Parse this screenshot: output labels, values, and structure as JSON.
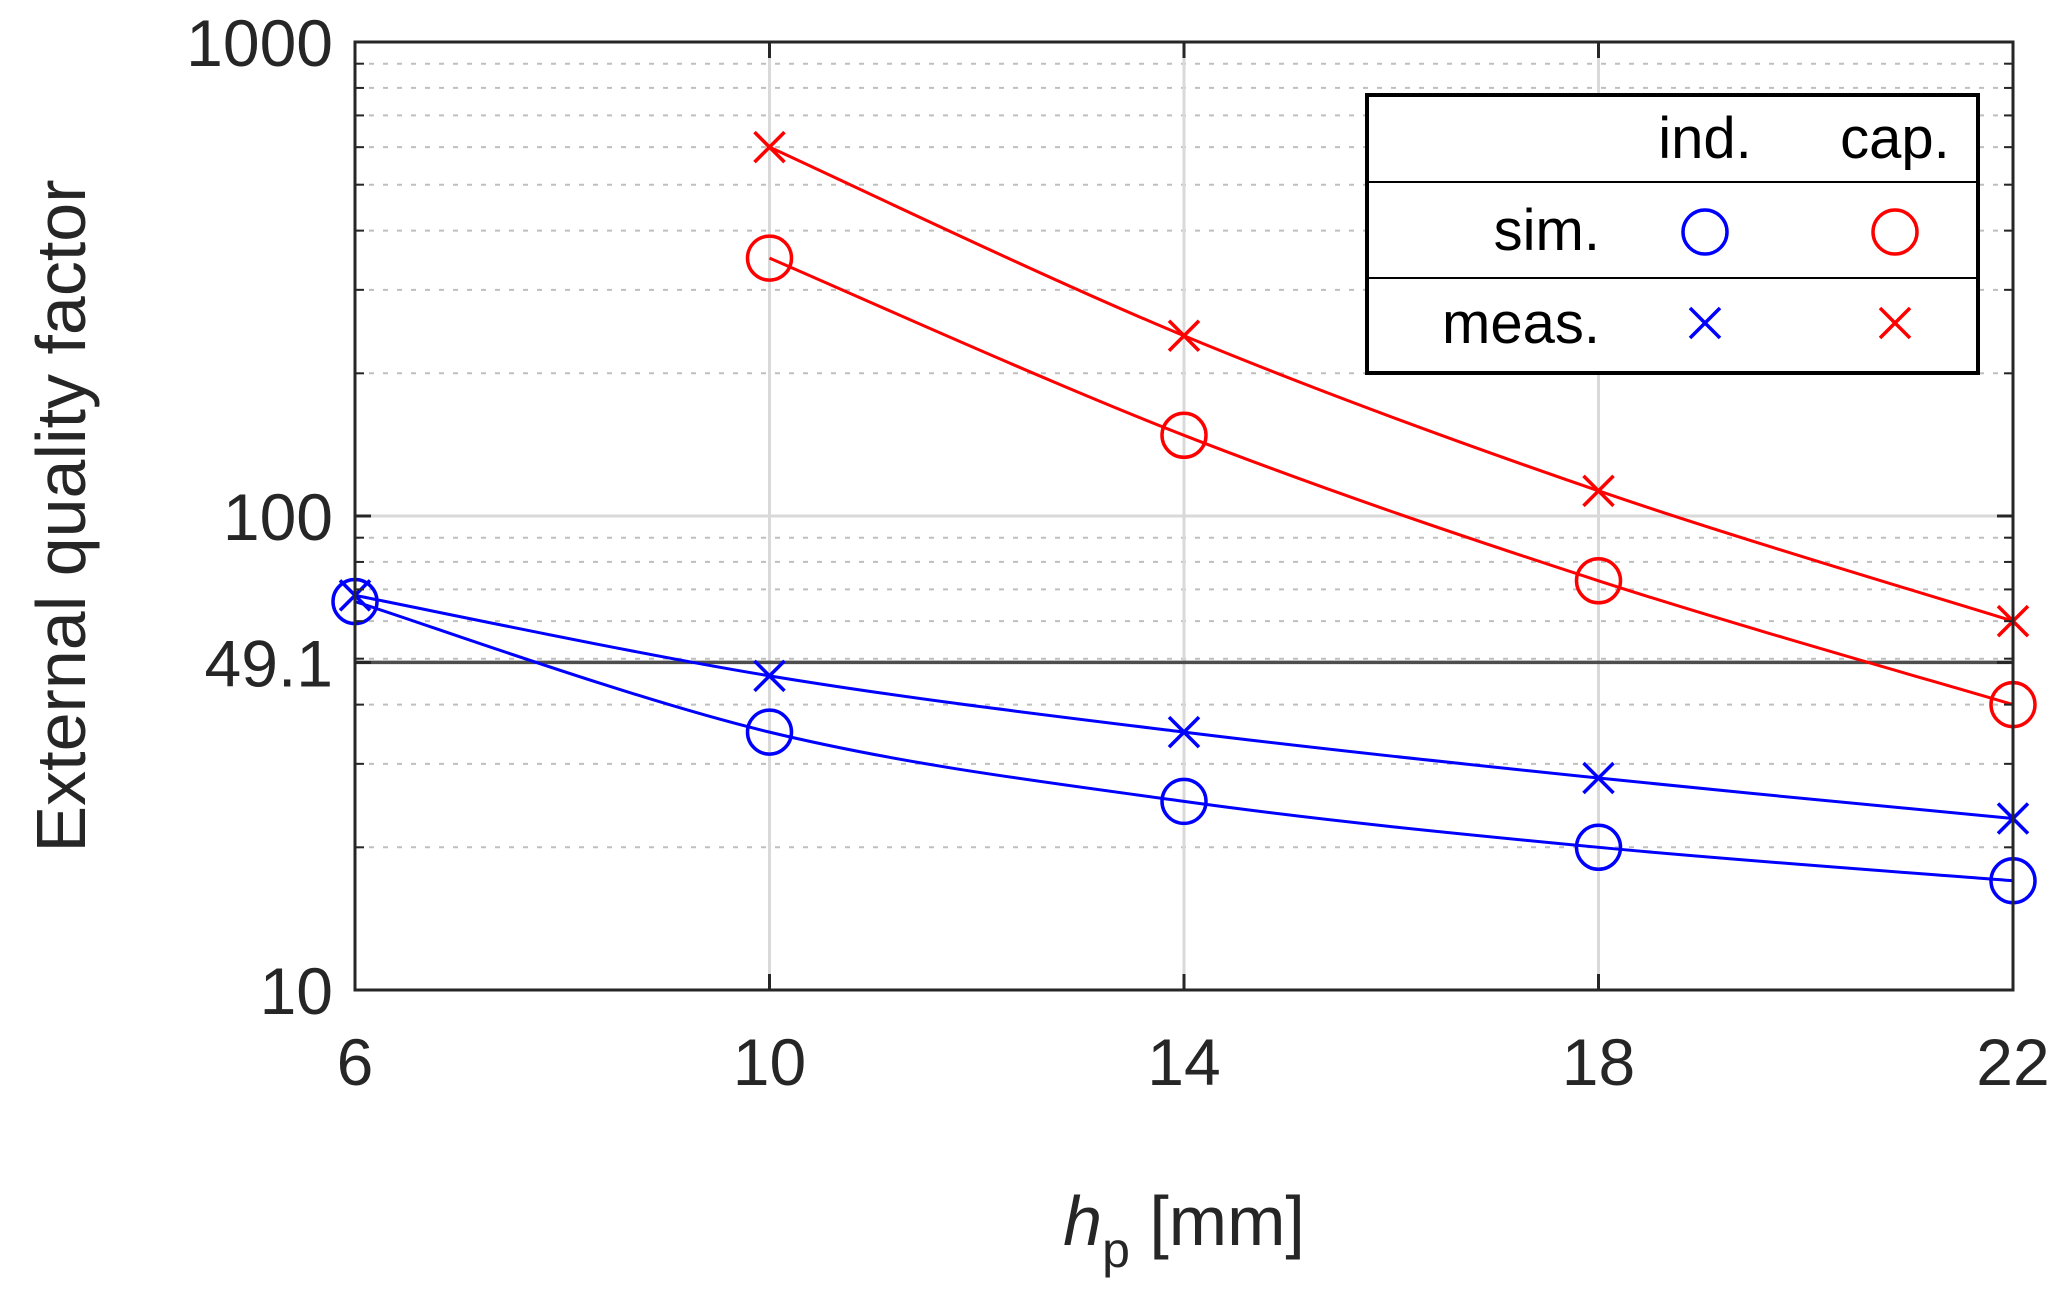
{
  "chart_data": {
    "type": "line",
    "title": "",
    "xlabel_italic": "h",
    "xlabel_sub": "p",
    "xlabel_rest": " [mm]",
    "ylabel": "External quality factor",
    "x": [
      6,
      10,
      14,
      18,
      22
    ],
    "xlim": [
      6,
      22
    ],
    "ylim": [
      10,
      1000
    ],
    "yscale": "log",
    "x_tick_labels": [
      "6",
      "10",
      "14",
      "18",
      "22"
    ],
    "y_tick_labels": [
      "10",
      "49.1",
      "100",
      "1000"
    ],
    "y_tick_values": [
      10,
      49.1,
      100,
      1000
    ],
    "reference_line": {
      "value": 49.1,
      "color": "#4d4d4d"
    },
    "grid": true,
    "series": [
      {
        "name": "ind. sim.",
        "marker": "circle",
        "color": "#0000ff",
        "x": [
          6,
          10,
          14,
          18,
          22
        ],
        "values": [
          66,
          35,
          25,
          20,
          17
        ]
      },
      {
        "name": "ind. meas.",
        "marker": "x",
        "color": "#0000ff",
        "x": [
          6,
          10,
          14,
          18,
          22
        ],
        "values": [
          68,
          46,
          35,
          28,
          23
        ]
      },
      {
        "name": "cap. sim.",
        "marker": "circle",
        "color": "#ff0000",
        "x": [
          10,
          14,
          18,
          22
        ],
        "values": [
          350,
          148,
          73,
          40
        ]
      },
      {
        "name": "cap. meas.",
        "marker": "x",
        "color": "#ff0000",
        "x": [
          10,
          14,
          18,
          22
        ],
        "values": [
          600,
          240,
          113,
          60
        ]
      }
    ],
    "legend": {
      "position": "top-right",
      "col_headers": [
        "ind.",
        "cap."
      ],
      "row_headers": [
        "sim.",
        "meas."
      ]
    }
  }
}
